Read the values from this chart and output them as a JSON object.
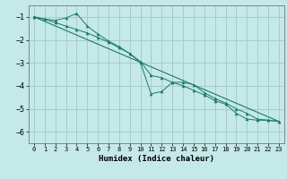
{
  "xlabel": "Humidex (Indice chaleur)",
  "background_color": "#c5e8e8",
  "grid_color": "#a8cccc",
  "line_color": "#1a7a6a",
  "xlim": [
    -0.5,
    23.5
  ],
  "ylim": [
    -6.5,
    -0.5
  ],
  "yticks": [
    -1,
    -2,
    -3,
    -4,
    -5,
    -6
  ],
  "xticks": [
    0,
    1,
    2,
    3,
    4,
    5,
    6,
    7,
    8,
    9,
    10,
    11,
    12,
    13,
    14,
    15,
    16,
    17,
    18,
    19,
    20,
    21,
    22,
    23
  ],
  "series1_x": [
    0,
    1,
    2,
    3,
    4,
    5,
    6,
    7,
    8,
    9,
    10,
    11,
    12,
    13,
    14,
    15,
    16,
    17,
    18,
    19,
    20,
    21,
    22,
    23
  ],
  "series1_y": [
    -1.0,
    -1.1,
    -1.15,
    -1.05,
    -0.85,
    -1.4,
    -1.75,
    -2.05,
    -2.3,
    -2.6,
    -2.95,
    -3.55,
    -3.65,
    -3.85,
    -4.0,
    -4.2,
    -4.4,
    -4.65,
    -4.8,
    -5.2,
    -5.45,
    -5.5,
    -5.5,
    -5.55
  ],
  "series2_x": [
    0,
    1,
    2,
    3,
    4,
    5,
    6,
    7,
    8,
    9,
    10,
    11,
    12,
    13,
    14,
    15,
    16,
    17,
    18,
    19,
    20,
    21,
    22,
    23
  ],
  "series2_y": [
    -1.0,
    -1.1,
    -1.25,
    -1.4,
    -1.55,
    -1.7,
    -1.9,
    -2.1,
    -2.35,
    -2.6,
    -3.0,
    -4.35,
    -4.25,
    -3.85,
    -3.85,
    -3.95,
    -4.3,
    -4.55,
    -4.75,
    -5.0,
    -5.2,
    -5.45,
    -5.5,
    -5.55
  ],
  "series3_x": [
    0,
    23
  ],
  "series3_y": [
    -1.0,
    -5.55
  ]
}
